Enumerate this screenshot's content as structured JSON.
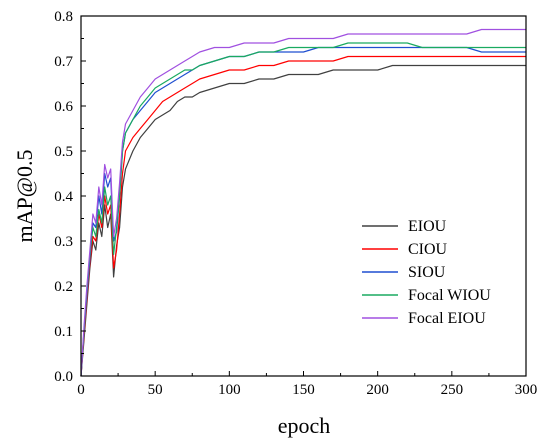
{
  "chart_data": {
    "type": "line",
    "title": "",
    "xlabel": "epoch",
    "ylabel": "mAP@0.5",
    "xlim": [
      0,
      300
    ],
    "ylim": [
      0.0,
      0.8
    ],
    "xticks": [
      "0",
      "50",
      "100",
      "150",
      "200",
      "250",
      "300"
    ],
    "yticks": [
      "0.0",
      "0.1",
      "0.2",
      "0.3",
      "0.4",
      "0.5",
      "0.6",
      "0.7",
      "0.8"
    ],
    "grid": false,
    "legend": "bottom-right",
    "x": [
      0,
      2,
      4,
      6,
      8,
      10,
      12,
      14,
      16,
      18,
      20,
      22,
      24,
      26,
      28,
      30,
      35,
      40,
      45,
      50,
      55,
      60,
      65,
      70,
      75,
      80,
      90,
      100,
      110,
      120,
      130,
      140,
      150,
      160,
      170,
      180,
      190,
      200,
      210,
      220,
      230,
      240,
      250,
      260,
      270,
      280,
      290,
      300
    ],
    "series": [
      {
        "name": "EIOU",
        "color": "#404040",
        "values": [
          0.0,
          0.08,
          0.16,
          0.24,
          0.3,
          0.28,
          0.34,
          0.31,
          0.38,
          0.33,
          0.36,
          0.22,
          0.29,
          0.33,
          0.42,
          0.46,
          0.5,
          0.53,
          0.55,
          0.57,
          0.58,
          0.59,
          0.61,
          0.62,
          0.62,
          0.63,
          0.64,
          0.65,
          0.65,
          0.66,
          0.66,
          0.67,
          0.67,
          0.67,
          0.68,
          0.68,
          0.68,
          0.68,
          0.69,
          0.69,
          0.69,
          0.69,
          0.69,
          0.69,
          0.69,
          0.69,
          0.69,
          0.69
        ]
      },
      {
        "name": "CIOU",
        "color": "#ff0000",
        "values": [
          0.0,
          0.09,
          0.17,
          0.25,
          0.31,
          0.3,
          0.36,
          0.33,
          0.4,
          0.36,
          0.38,
          0.24,
          0.28,
          0.36,
          0.45,
          0.5,
          0.53,
          0.55,
          0.57,
          0.59,
          0.61,
          0.62,
          0.63,
          0.64,
          0.65,
          0.66,
          0.67,
          0.68,
          0.68,
          0.69,
          0.69,
          0.7,
          0.7,
          0.7,
          0.7,
          0.71,
          0.71,
          0.71,
          0.71,
          0.71,
          0.71,
          0.71,
          0.71,
          0.71,
          0.71,
          0.71,
          0.71,
          0.71
        ]
      },
      {
        "name": "SIOU",
        "color": "#1f4fd0",
        "values": [
          0.0,
          0.1,
          0.18,
          0.26,
          0.34,
          0.33,
          0.4,
          0.36,
          0.45,
          0.42,
          0.44,
          0.3,
          0.32,
          0.4,
          0.5,
          0.54,
          0.57,
          0.59,
          0.61,
          0.63,
          0.64,
          0.65,
          0.66,
          0.67,
          0.68,
          0.69,
          0.7,
          0.71,
          0.71,
          0.72,
          0.72,
          0.72,
          0.72,
          0.73,
          0.73,
          0.73,
          0.73,
          0.73,
          0.73,
          0.73,
          0.73,
          0.73,
          0.73,
          0.73,
          0.72,
          0.72,
          0.72,
          0.72
        ]
      },
      {
        "name": "Focal WIOU",
        "color": "#1aaa60",
        "values": [
          0.0,
          0.1,
          0.19,
          0.27,
          0.33,
          0.31,
          0.37,
          0.34,
          0.42,
          0.38,
          0.4,
          0.27,
          0.33,
          0.4,
          0.5,
          0.54,
          0.57,
          0.6,
          0.62,
          0.64,
          0.65,
          0.66,
          0.67,
          0.68,
          0.68,
          0.69,
          0.7,
          0.71,
          0.71,
          0.72,
          0.72,
          0.73,
          0.73,
          0.73,
          0.73,
          0.74,
          0.74,
          0.74,
          0.74,
          0.74,
          0.73,
          0.73,
          0.73,
          0.73,
          0.73,
          0.73,
          0.73,
          0.73
        ]
      },
      {
        "name": "Focal EIOU",
        "color": "#a050e0",
        "values": [
          0.0,
          0.11,
          0.2,
          0.28,
          0.36,
          0.34,
          0.42,
          0.38,
          0.47,
          0.44,
          0.46,
          0.31,
          0.35,
          0.43,
          0.52,
          0.56,
          0.59,
          0.62,
          0.64,
          0.66,
          0.67,
          0.68,
          0.69,
          0.7,
          0.71,
          0.72,
          0.73,
          0.73,
          0.74,
          0.74,
          0.74,
          0.75,
          0.75,
          0.75,
          0.75,
          0.76,
          0.76,
          0.76,
          0.76,
          0.76,
          0.76,
          0.76,
          0.76,
          0.76,
          0.77,
          0.77,
          0.77,
          0.77
        ]
      }
    ]
  }
}
